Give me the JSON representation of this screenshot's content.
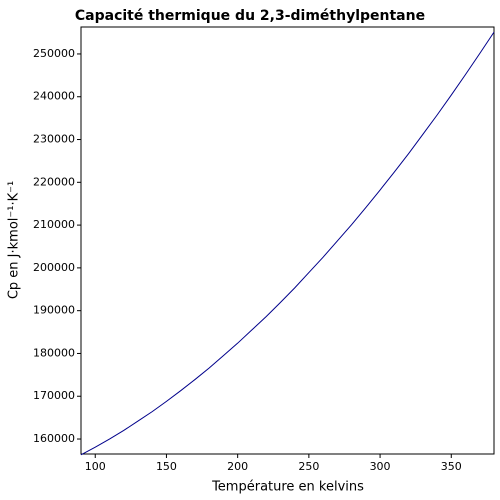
{
  "chart_data": {
    "type": "line",
    "title": "Capacité thermique du 2,3-diméthylpentane",
    "x_label": "Température en kelvins",
    "y_label": "Cp en J·kmol⁻¹·K⁻¹",
    "x": [
      90,
      100,
      110,
      120,
      130,
      140,
      150,
      160,
      170,
      180,
      190,
      200,
      210,
      220,
      230,
      240,
      250,
      260,
      270,
      280,
      290,
      300,
      310,
      320,
      330,
      340,
      350,
      360,
      370,
      380
    ],
    "series": [
      {
        "name": "Cp",
        "color": "#00008b",
        "values": [
          156300,
          158100,
          160000,
          162000,
          164200,
          166400,
          168800,
          171300,
          173900,
          176600,
          179500,
          182400,
          185500,
          188600,
          191900,
          195300,
          198900,
          202500,
          206300,
          210100,
          214100,
          218200,
          222400,
          226700,
          231200,
          235700,
          240400,
          245200,
          250100,
          255100
        ]
      }
    ],
    "xlim": [
      90,
      380
    ],
    "ylim": [
      156500,
      256300
    ],
    "xticks": [
      100,
      150,
      200,
      250,
      300,
      350
    ],
    "yticks": [
      160000,
      170000,
      180000,
      190000,
      200000,
      210000,
      220000,
      230000,
      240000,
      250000
    ]
  }
}
